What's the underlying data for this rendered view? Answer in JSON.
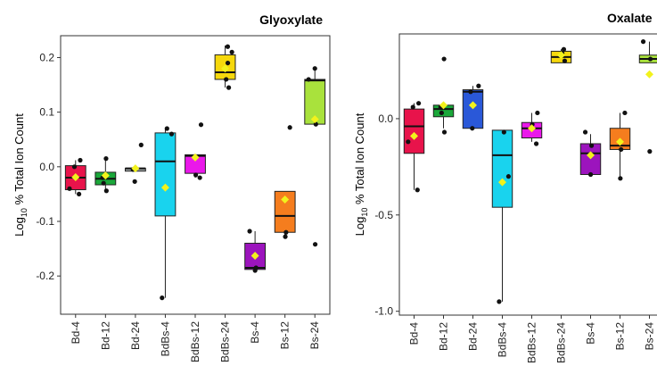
{
  "chart_data": [
    {
      "type": "box",
      "title": "Glyoxylate",
      "ylabel": "Log10 % Total Ion Count",
      "ylabel_parts": {
        "prefix": "Log",
        "subscript": "10",
        "suffix": " % Total Ion Count"
      },
      "ylim": [
        -0.27,
        0.24
      ],
      "yticks": [
        -0.2,
        -0.1,
        0.0,
        0.1,
        0.2
      ],
      "ytick_labels": [
        "-0.2",
        "-0.1",
        "0.0",
        "0.1",
        "0.2"
      ],
      "grid": false,
      "categories": [
        "Bd-4",
        "Bd-12",
        "Bd-24",
        "BdBs-4",
        "BdBs-12",
        "BdBs-24",
        "Bs-4",
        "Bs-12",
        "Bs-24"
      ],
      "boxes": [
        {
          "category": "Bd-4",
          "color": "#e8134b",
          "q1": -0.042,
          "median": -0.02,
          "q3": 0.002,
          "whisker_low": -0.05,
          "whisker_high": 0.012,
          "mean": -0.019,
          "points": [
            -0.05,
            -0.04,
            0.0,
            0.012
          ]
        },
        {
          "category": "Bd-12",
          "color": "#1aa83a",
          "q1": -0.033,
          "median": -0.022,
          "q3": -0.01,
          "whisker_low": -0.044,
          "whisker_high": 0.015,
          "mean": -0.016,
          "points": [
            -0.044,
            -0.03,
            -0.02,
            0.015
          ]
        },
        {
          "category": "Bd-24",
          "color": "#9fa6a6",
          "q1": -0.008,
          "median": -0.003,
          "q3": -0.003,
          "whisker_low": -0.008,
          "whisker_high": 0.0,
          "mean": -0.003,
          "points": [
            -0.027,
            -0.005,
            0.04
          ]
        },
        {
          "category": "BdBs-4",
          "color": "#19d3ee",
          "q1": -0.09,
          "median": 0.01,
          "q3": 0.062,
          "whisker_low": -0.24,
          "whisker_high": 0.07,
          "mean": -0.038,
          "points": [
            -0.24,
            0.06,
            0.07
          ]
        },
        {
          "category": "BdBs-12",
          "color": "#ea18ea",
          "q1": -0.012,
          "median": 0.02,
          "q3": 0.022,
          "whisker_low": -0.02,
          "whisker_high": 0.022,
          "mean": 0.017,
          "points": [
            -0.02,
            -0.015,
            0.077
          ]
        },
        {
          "category": "BdBs-24",
          "color": "#f6d80c",
          "q1": 0.16,
          "median": 0.173,
          "q3": 0.205,
          "whisker_low": 0.145,
          "whisker_high": 0.222,
          "mean": 0.18,
          "points": [
            0.145,
            0.16,
            0.19,
            0.21,
            0.22
          ]
        },
        {
          "category": "Bs-4",
          "color": "#9c14bd",
          "q1": -0.188,
          "median": -0.185,
          "q3": -0.14,
          "whisker_low": -0.188,
          "whisker_high": -0.118,
          "mean": -0.163,
          "points": [
            -0.19,
            -0.185,
            -0.118
          ]
        },
        {
          "category": "Bs-12",
          "color": "#f57d1e",
          "q1": -0.12,
          "median": -0.09,
          "q3": -0.045,
          "whisker_low": -0.128,
          "whisker_high": -0.045,
          "mean": -0.06,
          "points": [
            -0.128,
            -0.12,
            0.072
          ]
        },
        {
          "category": "Bs-24",
          "color": "#a9e23c",
          "q1": 0.078,
          "median": 0.158,
          "q3": 0.16,
          "whisker_low": 0.078,
          "whisker_high": 0.18,
          "mean": 0.087,
          "points": [
            -0.142,
            0.078,
            0.16,
            0.18
          ]
        }
      ]
    },
    {
      "type": "box",
      "title": "Oxalate",
      "ylabel": "Log10 % Total Ion Count",
      "ylabel_parts": {
        "prefix": "Log",
        "subscript": "10",
        "suffix": " % Total Ion Count"
      },
      "ylim": [
        -1.02,
        0.44
      ],
      "yticks": [
        -1.0,
        -0.5,
        0.0
      ],
      "ytick_labels": [
        "-1.0",
        "-0.5",
        "0.0"
      ],
      "grid": false,
      "categories": [
        "Bd-4",
        "Bd-12",
        "Bd-24",
        "BdBs-4",
        "BdBs-12",
        "BdBs-24",
        "Bs-4",
        "Bs-12",
        "Bs-24"
      ],
      "boxes": [
        {
          "category": "Bd-4",
          "color": "#e8134b",
          "q1": -0.18,
          "median": -0.04,
          "q3": 0.05,
          "whisker_low": -0.37,
          "whisker_high": 0.08,
          "mean": -0.09,
          "points": [
            -0.37,
            -0.12,
            0.06,
            0.08
          ]
        },
        {
          "category": "Bd-12",
          "color": "#1aa83a",
          "q1": 0.01,
          "median": 0.05,
          "q3": 0.07,
          "whisker_low": -0.05,
          "whisker_high": 0.07,
          "mean": 0.07,
          "points": [
            -0.07,
            0.03,
            0.06,
            0.31
          ]
        },
        {
          "category": "Bd-24",
          "color": "#2a58d8",
          "q1": -0.05,
          "median": 0.14,
          "q3": 0.15,
          "whisker_low": -0.05,
          "whisker_high": 0.17,
          "mean": 0.07,
          "points": [
            -0.05,
            0.14,
            0.17
          ]
        },
        {
          "category": "BdBs-4",
          "color": "#19d3ee",
          "q1": -0.46,
          "median": -0.19,
          "q3": -0.06,
          "whisker_low": -0.95,
          "whisker_high": -0.06,
          "mean": -0.33,
          "points": [
            -0.95,
            -0.3,
            -0.07
          ]
        },
        {
          "category": "BdBs-12",
          "color": "#ea18ea",
          "q1": -0.1,
          "median": -0.05,
          "q3": -0.02,
          "whisker_low": -0.12,
          "whisker_high": 0.03,
          "mean": -0.05,
          "points": [
            -0.13,
            -0.03,
            0.03
          ]
        },
        {
          "category": "BdBs-24",
          "color": "#f6d80c",
          "q1": 0.29,
          "median": 0.32,
          "q3": 0.35,
          "whisker_low": 0.29,
          "whisker_high": 0.36,
          "mean": 0.33,
          "points": [
            0.3,
            0.34,
            0.36
          ]
        },
        {
          "category": "Bs-4",
          "color": "#9c14bd",
          "q1": -0.29,
          "median": -0.18,
          "q3": -0.13,
          "whisker_low": -0.29,
          "whisker_high": -0.08,
          "mean": -0.19,
          "points": [
            -0.29,
            -0.14,
            -0.07
          ]
        },
        {
          "category": "Bs-12",
          "color": "#f57d1e",
          "q1": -0.16,
          "median": -0.14,
          "q3": -0.05,
          "whisker_low": -0.3,
          "whisker_high": 0.03,
          "mean": -0.12,
          "points": [
            -0.31,
            -0.16,
            0.03
          ]
        },
        {
          "category": "Bs-24",
          "color": "#a9e23c",
          "q1": 0.29,
          "median": 0.31,
          "q3": 0.33,
          "whisker_low": 0.29,
          "whisker_high": 0.4,
          "mean": 0.23,
          "points": [
            -0.17,
            0.31,
            0.4
          ]
        }
      ]
    }
  ]
}
